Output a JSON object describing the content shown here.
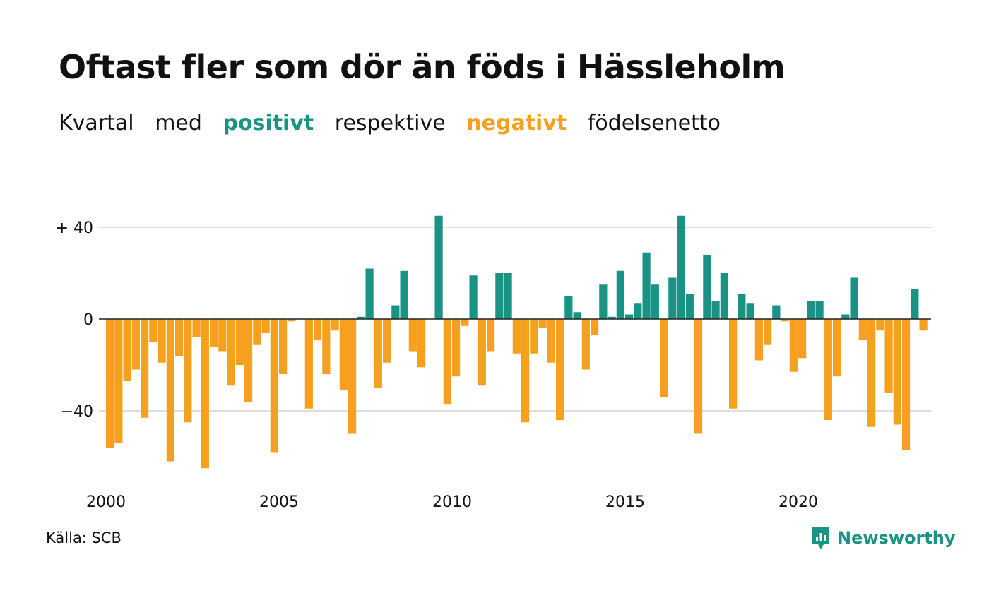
{
  "title": "Oftast fler som dör än föds i Hässleholm",
  "subtitle": {
    "part1": "Kvartal",
    "part2": "med",
    "positive_word": "positivt",
    "part3": "respektive",
    "negative_word": "negativt",
    "part4": "födelsenetto"
  },
  "colors": {
    "positive": "#1a9385",
    "negative": "#f5a11f",
    "grid": "#dddddd",
    "zero_line": "#222222"
  },
  "source": "Källa: SCB",
  "logo": {
    "text": "Newsworthy",
    "icon": "newsworthy-logo-icon"
  },
  "chart_data": {
    "type": "bar",
    "x_start_year": 2000,
    "periods_per_year": 4,
    "x_ticks": [
      "2000",
      "2005",
      "2010",
      "2015",
      "2020"
    ],
    "y_ticks": [
      {
        "value": 40,
        "label": "+ 40"
      },
      {
        "value": 0,
        "label": "0"
      },
      {
        "value": -40,
        "label": "−40"
      }
    ],
    "ylim": [
      -70,
      45
    ],
    "grid": true,
    "values": [
      -56,
      -54,
      -27,
      -22,
      -43,
      -10,
      -19,
      -62,
      -16,
      -45,
      -8,
      -65,
      -12,
      -14,
      -29,
      -20,
      -36,
      -11,
      -6,
      -58,
      -24,
      -1,
      0,
      -39,
      -9,
      -24,
      -5,
      -31,
      -50,
      1,
      22,
      -30,
      -19,
      6,
      21,
      -14,
      -21,
      0,
      45,
      -37,
      -25,
      -3,
      19,
      -29,
      -14,
      20,
      20,
      -15,
      -45,
      -15,
      -4,
      -19,
      -44,
      10,
      3,
      -22,
      -7,
      15,
      1,
      21,
      2,
      7,
      29,
      15,
      -34,
      18,
      45,
      11,
      -50,
      28,
      8,
      20,
      -39,
      11,
      7,
      -18,
      -11,
      6,
      -1,
      -23,
      -17,
      8,
      8,
      -44,
      -25,
      2,
      18,
      -9,
      -47,
      -5,
      -32,
      -46,
      -57,
      13,
      -5
    ]
  }
}
